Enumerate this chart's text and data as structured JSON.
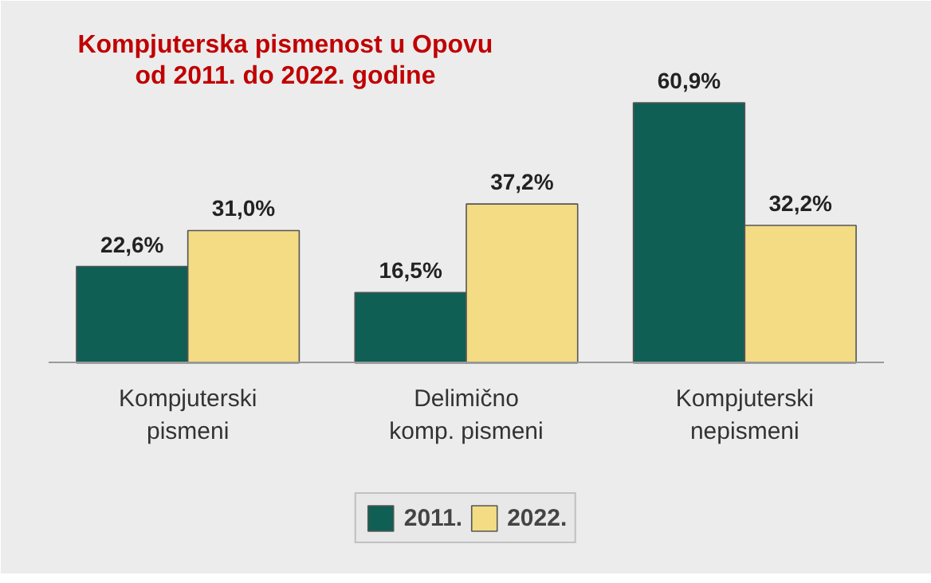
{
  "chart_data": {
    "type": "bar",
    "title": "Kompjuterska pismenost u Opovu\nod 2011. do 2022. godine",
    "categories": [
      "Kompjuterski\npismeni",
      "Delimično\nkomp. pismeni",
      "Kompjuterski\nnepismeni"
    ],
    "series": [
      {
        "name": "2011.",
        "color": "#0f5f55",
        "values": [
          22.6,
          16.5,
          60.9
        ],
        "value_labels": [
          "22,6%",
          "16,5%",
          "60,9%"
        ]
      },
      {
        "name": "2022.",
        "color": "#f3dc84",
        "values": [
          31.0,
          37.2,
          32.2
        ],
        "value_labels": [
          "31,0%",
          "37,2%",
          "32,2%"
        ]
      }
    ],
    "legend": "bottom"
  }
}
